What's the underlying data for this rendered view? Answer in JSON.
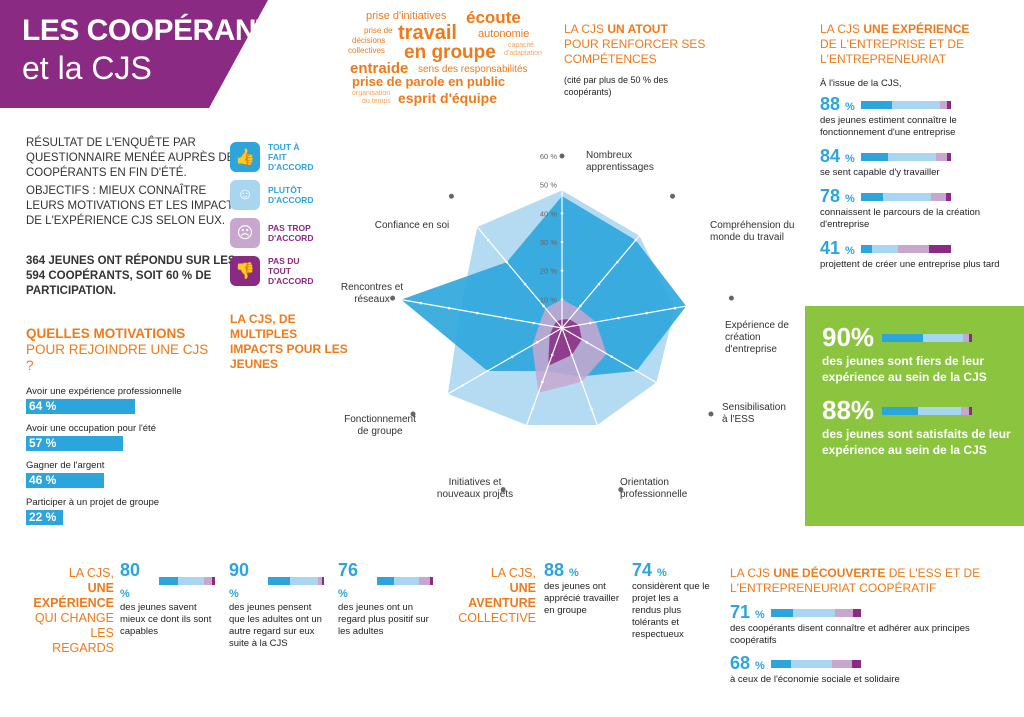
{
  "title": {
    "line1": "LES COOPÉRANTS",
    "line2": "et la CJS"
  },
  "intro": {
    "p1": "Résultat de l'enquête par questionnaire menée auprès des coopérants en fin d'été.",
    "p2": "Objectifs : mieux connaître leurs motivations et les impacts de l'expérience CJS selon eux.",
    "p3": "364 jeunes ont répondu sur les 594 coopérants, soit 60 % de participation."
  },
  "motivations": {
    "title_bold": "QUELLES MOTIVATIONS",
    "title_rest": "POUR REJOINDRE UNE CJS ?",
    "items": [
      {
        "label": "Avoir une expérience professionnelle",
        "value": "64 %",
        "pct": 64
      },
      {
        "label": "Avoir une occupation pour l'été",
        "value": "57 %",
        "pct": 57
      },
      {
        "label": "Gagner de l'argent",
        "value": "46 %",
        "pct": 46
      },
      {
        "label": "Participer à un projet de groupe",
        "value": "22 %",
        "pct": 22
      }
    ]
  },
  "legend": [
    {
      "label": "Tout à fait d'accord",
      "color": "#2ca5dd",
      "icon": "thumbs-up-icon",
      "glyph": "👍"
    },
    {
      "label": "Plutôt d'accord",
      "color": "#a8d5f0",
      "icon": "smile-icon",
      "glyph": "☺"
    },
    {
      "label": "Pas trop d'accord",
      "color": "#c8a7cf",
      "icon": "confused-icon",
      "glyph": "☹"
    },
    {
      "label": "Pas du tout d'accord",
      "color": "#8b2a82",
      "icon": "thumbs-down-icon",
      "glyph": "👎"
    }
  ],
  "impacts_title": "LA CJS, DE MULTIPLES IMPACTS POUR LES JEUNES",
  "wordcloud": [
    "prise d'initiatives",
    "écoute",
    "travail",
    "autonomie",
    "prise de",
    "décisions",
    "collectives",
    "en groupe",
    "capacité",
    "d'adaptation",
    "entraide",
    "sens des responsabilités",
    "prise de parole en public",
    "organisation",
    "du temps",
    "esprit d'équipe"
  ],
  "atout": {
    "pre": "LA CJS ",
    "bold": "UN ATOUT",
    "rest": "POUR RENFORCER SES COMPÉTENCES",
    "note": "(cité par plus de 50 % des coopérants)"
  },
  "experience_entreprise": {
    "pre": "LA CJS ",
    "bold": "UNE EXPÉRIENCE",
    "rest": "DE L'ENTREPRISE ET DE L'ENTREPRENEURIAT",
    "intro": "À l'issue de la CJS,",
    "stats": [
      {
        "value": "88",
        "unit": "%",
        "text": "des jeunes estiment connaître le fonctionnement d'une entreprise",
        "dist": [
          0.35,
          0.53,
          0.08,
          0.04
        ]
      },
      {
        "value": "84",
        "unit": "%",
        "text": "se sent capable d'y travailler",
        "dist": [
          0.3,
          0.54,
          0.12,
          0.04
        ]
      },
      {
        "value": "78",
        "unit": "%",
        "text": "connaissent le parcours de la création d'entreprise",
        "dist": [
          0.25,
          0.53,
          0.17,
          0.05
        ]
      },
      {
        "value": "41",
        "unit": "%",
        "text": "projettent de créer une entreprise plus tard",
        "dist": [
          0.12,
          0.29,
          0.35,
          0.24
        ]
      }
    ]
  },
  "green_box": [
    {
      "value": "90%",
      "text": "des jeunes sont fiers de leur expérience au sein de la CJS",
      "dist": [
        0.45,
        0.45,
        0.07,
        0.03
      ]
    },
    {
      "value": "88%",
      "text": "des jeunes sont satisfaits de leur expérience au sein de la CJS",
      "dist": [
        0.4,
        0.48,
        0.09,
        0.03
      ]
    }
  ],
  "regards": {
    "l1": "LA CJS,",
    "l2": "UNE",
    "l3": "EXPÉRIENCE",
    "l4": "QUI CHANGE",
    "l5": "LES REGARDS",
    "stats": [
      {
        "value": "80",
        "unit": "%",
        "text": "des jeunes savent mieux ce dont ils sont capables",
        "dist": [
          0.35,
          0.45,
          0.14,
          0.06
        ]
      },
      {
        "value": "90",
        "unit": "%",
        "text": "des jeunes pensent que les adultes ont un autre regard sur eux suite à la CJS",
        "dist": [
          0.4,
          0.5,
          0.07,
          0.03
        ]
      },
      {
        "value": "76",
        "unit": "%",
        "text": "des jeunes ont un regard plus positif sur les adultes",
        "dist": [
          0.3,
          0.46,
          0.18,
          0.06
        ]
      }
    ]
  },
  "aventure": {
    "l1": "LA CJS,",
    "l2": "UNE",
    "l3": "AVENTURE",
    "l4": "COLLECTIVE",
    "stats": [
      {
        "value": "88",
        "unit": "%",
        "text": "des jeunes ont apprécié travailler en groupe"
      },
      {
        "value": "74",
        "unit": "%",
        "text": "considèrent que le projet les a rendus plus tolérants et respectueux"
      }
    ]
  },
  "decouverte": {
    "pre": "LA CJS ",
    "bold": "UNE DÉCOUVERTE",
    "rest": " DE L'ESS ET DE L'ENTREPRENEURIAT COOPÉRATIF",
    "stats": [
      {
        "value": "71",
        "unit": "%",
        "text": "des coopérants disent connaître et adhérer aux principes coopératifs",
        "dist": [
          0.25,
          0.46,
          0.2,
          0.09
        ]
      },
      {
        "value": "68",
        "unit": "%",
        "text": "à ceux de l'économie sociale et solidaire",
        "dist": [
          0.22,
          0.46,
          0.22,
          0.1
        ]
      }
    ]
  },
  "chart_data": {
    "type": "radar",
    "categories": [
      "Nombreux apprentissages",
      "Compréhension du monde du travail",
      "Expérience de création d'entreprise",
      "Sensibilisation à l'ESS",
      "Orientation professionnelle",
      "Initiatives et nouveaux projets",
      "Fonctionnement de groupe",
      "Rencontres et réseaux",
      "Confiance en soi"
    ],
    "ticks": [
      "10 %",
      "20 %",
      "30 %",
      "40 %",
      "50 %",
      "60 %"
    ],
    "rmax": 60,
    "series": [
      {
        "name": "Tout à fait d'accord",
        "color": "#2ca5dd",
        "values": [
          46,
          40,
          44,
          30,
          18,
          16,
          30,
          57,
          30
        ]
      },
      {
        "name": "Plutôt d'accord",
        "color": "#a8d5f0",
        "values": [
          48,
          42,
          40,
          38,
          36,
          36,
          46,
          36,
          46
        ]
      },
      {
        "name": "Pas trop d'accord",
        "color": "#c8a7cf",
        "values": [
          10,
          9,
          12,
          18,
          20,
          24,
          12,
          8,
          9
        ]
      },
      {
        "name": "Pas du tout d'accord",
        "color": "#8b2a82",
        "values": [
          3,
          4,
          6,
          8,
          10,
          14,
          5,
          3,
          3
        ]
      }
    ]
  }
}
